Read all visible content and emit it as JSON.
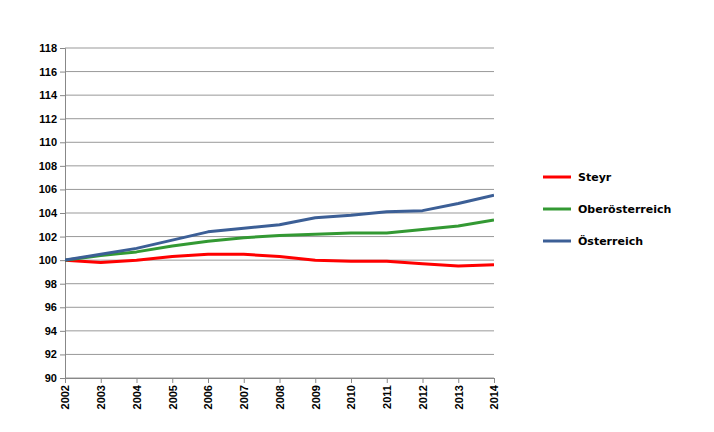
{
  "chart_data": {
    "type": "line",
    "x": [
      2002,
      2003,
      2004,
      2005,
      2006,
      2007,
      2008,
      2009,
      2010,
      2011,
      2012,
      2013,
      2014
    ],
    "xlim": [
      2002,
      2014
    ],
    "xticks": [
      2002,
      2003,
      2004,
      2005,
      2006,
      2007,
      2008,
      2009,
      2010,
      2011,
      2012,
      2013,
      2014
    ],
    "ylim": [
      90,
      118
    ],
    "yticks": [
      90,
      92,
      94,
      96,
      98,
      100,
      102,
      104,
      106,
      108,
      110,
      112,
      114,
      116,
      118
    ],
    "grid": true,
    "legend": "right",
    "series": [
      {
        "name": "Steyr",
        "color": "#ff0000",
        "values": [
          100,
          99.8,
          100.0,
          100.3,
          100.5,
          100.5,
          100.3,
          100.0,
          99.9,
          99.9,
          99.7,
          99.5,
          99.6
        ]
      },
      {
        "name": "Oberösterreich",
        "color": "#339933",
        "values": [
          100,
          100.4,
          100.7,
          101.2,
          101.6,
          101.9,
          102.1,
          102.2,
          102.3,
          102.3,
          102.6,
          102.9,
          103.4
        ]
      },
      {
        "name": "Österreich",
        "color": "#3c5f96",
        "values": [
          100,
          100.5,
          101.0,
          101.7,
          102.4,
          102.7,
          103.0,
          103.6,
          103.8,
          104.1,
          104.2,
          104.8,
          105.5
        ]
      }
    ]
  }
}
